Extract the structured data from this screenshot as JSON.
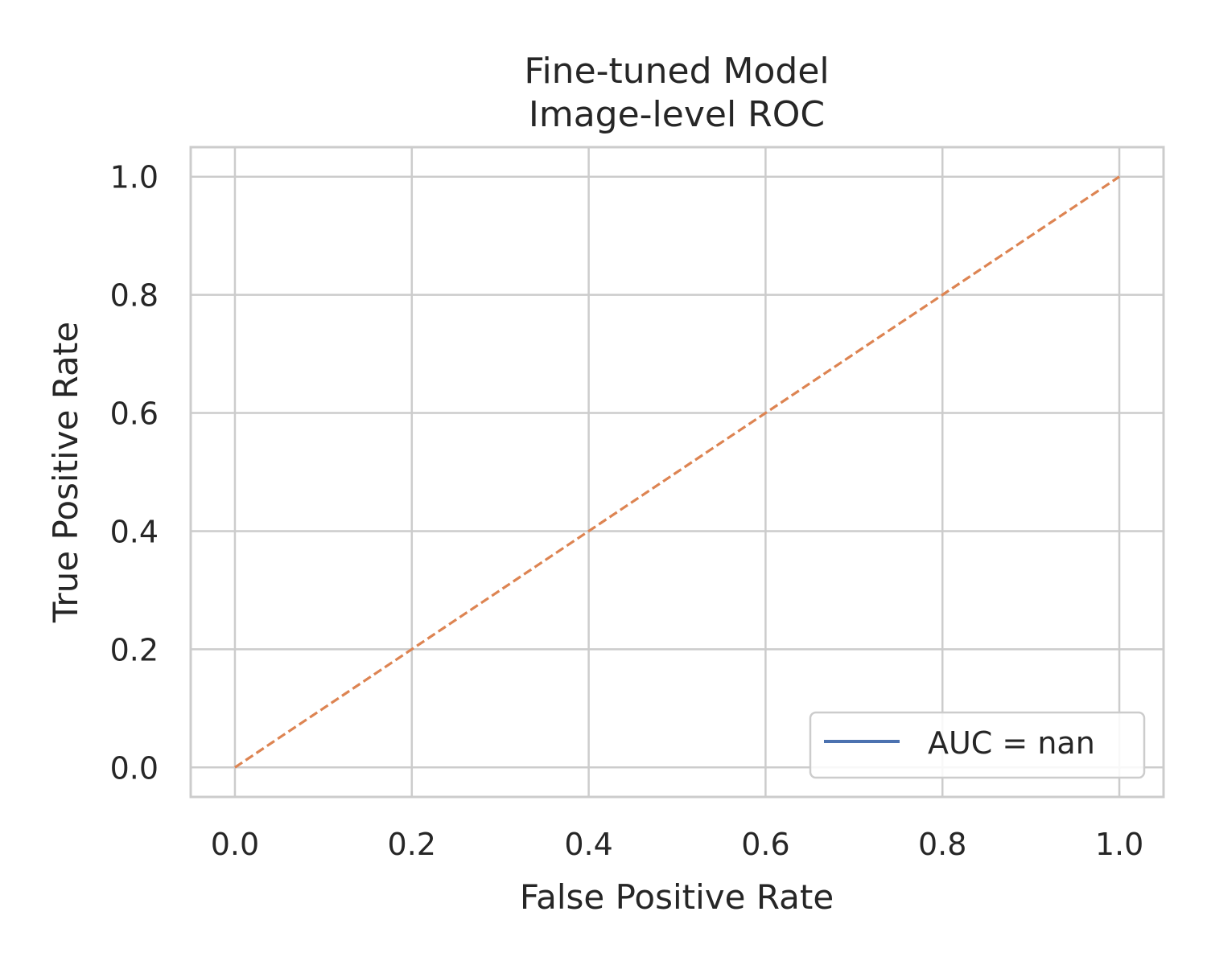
{
  "chart_data": {
    "type": "line",
    "title_lines": [
      "Fine-tuned Model",
      "Image-level ROC"
    ],
    "xlabel": "False Positive Rate",
    "ylabel": "True Positive Rate",
    "xlim": [
      -0.05,
      1.05
    ],
    "ylim": [
      -0.05,
      1.05
    ],
    "x_ticks": [
      "0.0",
      "0.2",
      "0.4",
      "0.6",
      "0.8",
      "1.0"
    ],
    "y_ticks": [
      "0.0",
      "0.2",
      "0.4",
      "0.6",
      "0.8",
      "1.0"
    ],
    "grid": true,
    "legend_position": "lower-right",
    "series": [
      {
        "name": "AUC = nan",
        "style": "solid",
        "color": "#4c72b0",
        "x": [],
        "y": []
      },
      {
        "style": "dashed",
        "color": "#dd8452",
        "x": [
          0,
          1
        ],
        "y": [
          0,
          1
        ]
      }
    ]
  }
}
